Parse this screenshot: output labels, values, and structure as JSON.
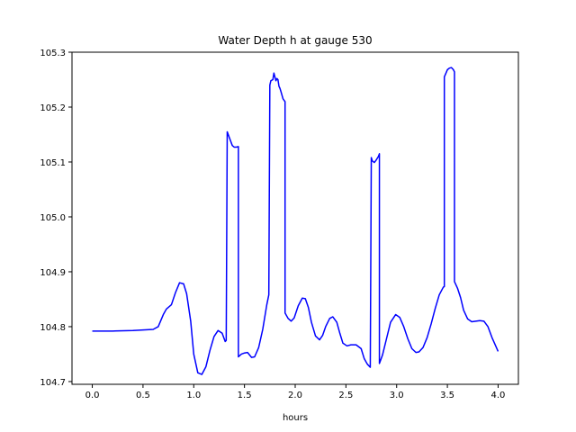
{
  "chart_data": {
    "type": "line",
    "title": "Water Depth h at gauge 530",
    "xlabel": "hours",
    "ylabel": "",
    "xlim": [
      -0.2,
      4.2
    ],
    "ylim": [
      104.695,
      105.3
    ],
    "xticks": [
      0.0,
      0.5,
      1.0,
      1.5,
      2.0,
      2.5,
      3.0,
      3.5,
      4.0
    ],
    "xtick_labels": [
      "0.0",
      "0.5",
      "1.0",
      "1.5",
      "2.0",
      "2.5",
      "3.0",
      "3.5",
      "4.0"
    ],
    "yticks": [
      104.7,
      104.8,
      104.9,
      105.0,
      105.1,
      105.2,
      105.3
    ],
    "ytick_labels": [
      "104.7",
      "104.8",
      "104.9",
      "105.0",
      "105.1",
      "105.2",
      "105.3"
    ],
    "grid": false,
    "series": [
      {
        "color": "#0000ff",
        "x": [
          0.0,
          0.2,
          0.4,
          0.6,
          0.65,
          0.7,
          0.73,
          0.78,
          0.82,
          0.86,
          0.9,
          0.93,
          0.97,
          1.0,
          1.04,
          1.08,
          1.12,
          1.16,
          1.2,
          1.24,
          1.28,
          1.31,
          1.32,
          1.33,
          1.34,
          1.36,
          1.38,
          1.4,
          1.42,
          1.44,
          1.44,
          1.47,
          1.5,
          1.53,
          1.57,
          1.6,
          1.64,
          1.68,
          1.72,
          1.74,
          1.75,
          1.76,
          1.78,
          1.79,
          1.8,
          1.81,
          1.82,
          1.83,
          1.84,
          1.85,
          1.86,
          1.88,
          1.9,
          1.9,
          1.93,
          1.96,
          1.99,
          2.03,
          2.07,
          2.1,
          2.13,
          2.16,
          2.2,
          2.24,
          2.27,
          2.3,
          2.34,
          2.37,
          2.41,
          2.44,
          2.47,
          2.51,
          2.55,
          2.6,
          2.65,
          2.68,
          2.71,
          2.74,
          2.75,
          2.76,
          2.78,
          2.8,
          2.82,
          2.83,
          2.83,
          2.86,
          2.9,
          2.94,
          2.99,
          3.03,
          3.07,
          3.11,
          3.15,
          3.19,
          3.22,
          3.26,
          3.3,
          3.34,
          3.38,
          3.42,
          3.46,
          3.47,
          3.47,
          3.5,
          3.52,
          3.54,
          3.56,
          3.57,
          3.57,
          3.6,
          3.63,
          3.66,
          3.7,
          3.74,
          3.78,
          3.82,
          3.86,
          3.9,
          3.94,
          4.0
        ],
        "y": [
          104.792,
          104.792,
          104.793,
          104.795,
          104.8,
          104.822,
          104.832,
          104.84,
          104.862,
          104.88,
          104.878,
          104.86,
          104.81,
          104.75,
          104.716,
          104.713,
          104.727,
          104.757,
          104.782,
          104.793,
          104.788,
          104.773,
          104.775,
          105.155,
          105.15,
          105.14,
          105.13,
          105.127,
          105.127,
          105.128,
          104.745,
          104.75,
          104.752,
          104.753,
          104.744,
          104.745,
          104.762,
          104.795,
          104.84,
          104.858,
          105.24,
          105.248,
          105.25,
          105.262,
          105.255,
          105.248,
          105.252,
          105.25,
          105.238,
          105.234,
          105.228,
          105.215,
          105.21,
          104.825,
          104.815,
          104.81,
          104.816,
          104.838,
          104.852,
          104.851,
          104.835,
          104.808,
          104.783,
          104.776,
          104.784,
          104.8,
          104.815,
          104.818,
          104.808,
          104.788,
          104.77,
          104.765,
          104.767,
          104.767,
          104.76,
          104.742,
          104.732,
          104.726,
          105.108,
          105.102,
          105.099,
          105.104,
          105.11,
          105.115,
          104.733,
          104.748,
          104.778,
          104.808,
          104.822,
          104.817,
          104.8,
          104.778,
          104.76,
          104.753,
          104.754,
          104.762,
          104.78,
          104.805,
          104.833,
          104.858,
          104.872,
          104.873,
          105.255,
          105.268,
          105.271,
          105.272,
          105.268,
          105.264,
          104.882,
          104.87,
          104.853,
          104.83,
          104.814,
          104.809,
          104.81,
          104.811,
          104.81,
          104.8,
          104.78,
          104.755
        ]
      }
    ]
  }
}
